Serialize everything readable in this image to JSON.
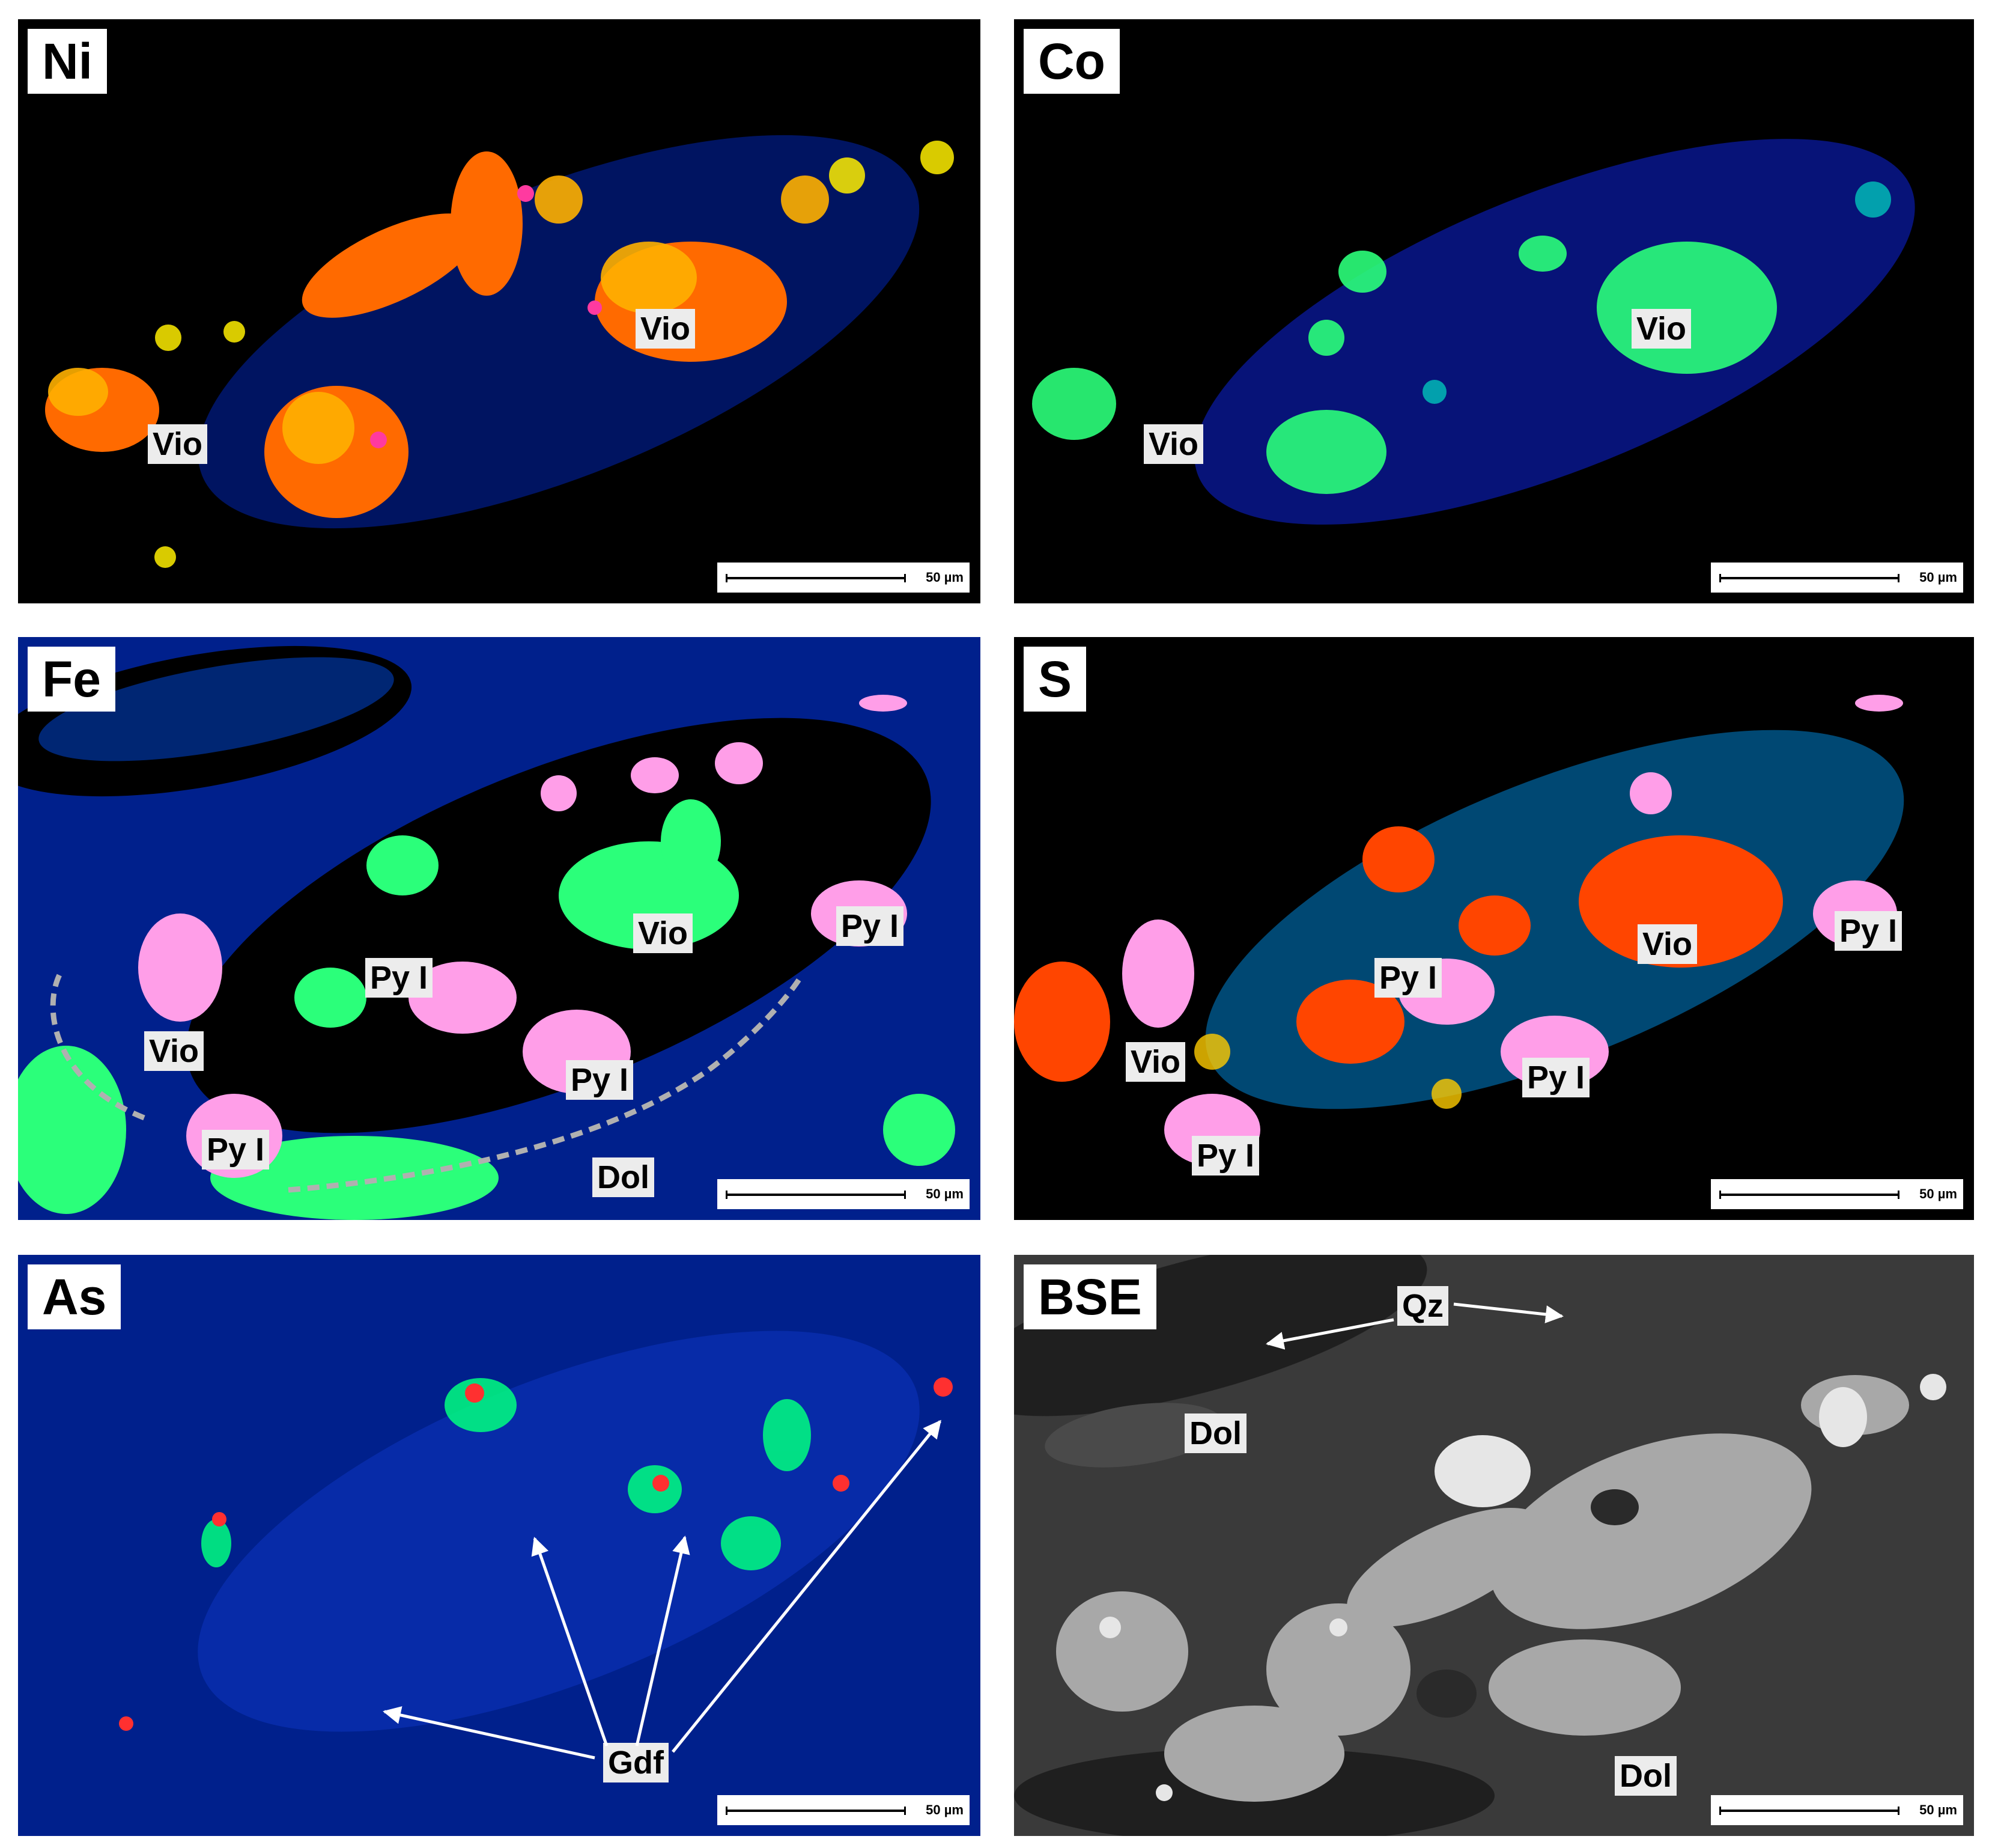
{
  "panels": {
    "ni": {
      "element": "Ni",
      "labels": [
        "Vio",
        "Vio"
      ],
      "scale": "50 µm"
    },
    "co": {
      "element": "Co",
      "labels": [
        "Vio",
        "Vio"
      ],
      "scale": "50 µm"
    },
    "fe": {
      "element": "Fe",
      "labels": [
        "Vio",
        "Py I",
        "Vio",
        "Py I",
        "Py I",
        "Py I",
        "Dol"
      ],
      "scale": "50 µm"
    },
    "s": {
      "element": "S",
      "labels": [
        "Vio",
        "Py I",
        "Py I",
        "Vio",
        "Py I",
        "Py I"
      ],
      "scale": "50 µm"
    },
    "as": {
      "element": "As",
      "labels": [
        "Gdf"
      ],
      "scale": "50 µm"
    },
    "bse": {
      "element": "BSE",
      "labels": [
        "Qz",
        "Dol",
        "Dol"
      ],
      "scale": "50 µm"
    }
  },
  "colors": {
    "black_bg": "#000000",
    "blue_bg": "#00208c",
    "bse_bg": "#3a3a3a",
    "hot": "#ff4500",
    "orange": "#ff8c00",
    "yellow": "#ffd400",
    "green": "#2bff7a",
    "cyan": "#00e5ff",
    "pink": "#ff9ee8",
    "white": "#ffffff"
  }
}
